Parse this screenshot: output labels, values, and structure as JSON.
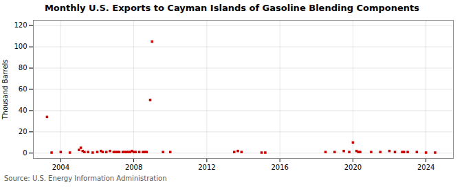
{
  "chart_data": {
    "type": "scatter",
    "title": "Monthly U.S. Exports to Cayman Islands of Gasoline Blending Components",
    "ylabel": "Thousand Barrels",
    "annotations": [
      "Source: U.S. Energy Information Administration"
    ],
    "color": "#cc0000",
    "marker": "square",
    "grid": true,
    "xlim": [
      2002.5,
      2025.5
    ],
    "ylim": [
      -5,
      125
    ],
    "xticks": [
      2004,
      2008,
      2012,
      2016,
      2020,
      2024
    ],
    "yticks": [
      0,
      20,
      40,
      60,
      80,
      100,
      120
    ],
    "x": [
      2003.25,
      2003.5,
      2004.0,
      2004.5,
      2005.0,
      2005.1,
      2005.2,
      2005.3,
      2005.5,
      2005.75,
      2006.0,
      2006.2,
      2006.3,
      2006.5,
      2006.7,
      2006.9,
      2007.0,
      2007.1,
      2007.2,
      2007.4,
      2007.5,
      2007.6,
      2007.7,
      2007.8,
      2007.9,
      2008.0,
      2008.1,
      2008.3,
      2008.5,
      2008.6,
      2008.7,
      2008.9,
      2009.0,
      2009.6,
      2010.0,
      2013.5,
      2013.7,
      2013.9,
      2015.0,
      2015.2,
      2018.5,
      2019.0,
      2019.5,
      2019.8,
      2020.0,
      2020.2,
      2020.3,
      2020.4,
      2021.0,
      2021.5,
      2022.0,
      2022.3,
      2022.7,
      2022.8,
      2023.0,
      2023.5,
      2024.0,
      2024.5
    ],
    "values": [
      34,
      0.5,
      1,
      0.5,
      3,
      5,
      2,
      1,
      1,
      0.5,
      1,
      2,
      1,
      1,
      2,
      1,
      1,
      1,
      1,
      1,
      1,
      1,
      1,
      1,
      2,
      1,
      1,
      1,
      1,
      1,
      1,
      50,
      105,
      1,
      1,
      1,
      2,
      1,
      0.5,
      0.5,
      1,
      1,
      2,
      1,
      10,
      2,
      1,
      1,
      1,
      1,
      2,
      1,
      1,
      1,
      1,
      1,
      0.5,
      0.5
    ]
  }
}
